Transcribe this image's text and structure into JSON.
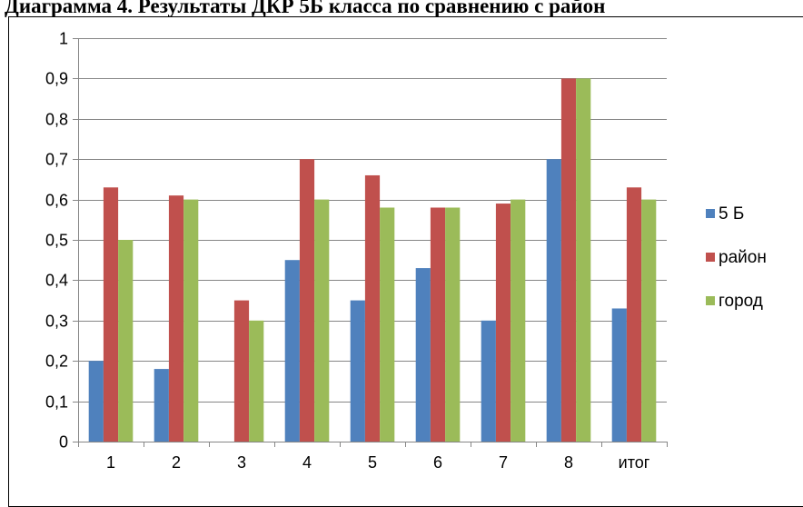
{
  "page": {
    "title": "Диаграмма 4. Результаты ДКР 5Б класса по сравнению с район"
  },
  "chart_data": {
    "type": "bar",
    "title": "Диаграмма 4. Результаты ДКР 5Б класса по сравнению с район",
    "categories": [
      "1",
      "2",
      "3",
      "4",
      "5",
      "6",
      "7",
      "8",
      "итог"
    ],
    "series": [
      {
        "name": "5 Б",
        "color": "#4F81BD",
        "values": [
          0.2,
          0.18,
          0,
          0.45,
          0.35,
          0.43,
          0.3,
          0.7,
          0.33
        ]
      },
      {
        "name": "район",
        "color": "#C0504D",
        "values": [
          0.63,
          0.61,
          0.35,
          0.7,
          0.66,
          0.58,
          0.59,
          0.9,
          0.63
        ]
      },
      {
        "name": "город",
        "color": "#9BBB59",
        "values": [
          0.5,
          0.6,
          0.3,
          0.6,
          0.58,
          0.58,
          0.6,
          0.9,
          0.6
        ]
      }
    ],
    "ylim": [
      0,
      1
    ],
    "yticks": [
      0,
      0.1,
      0.2,
      0.3,
      0.4,
      0.5,
      0.6,
      0.7,
      0.8,
      0.9,
      1
    ],
    "ytick_labels": [
      "0",
      "0,1",
      "0,2",
      "0,3",
      "0,4",
      "0,5",
      "0,6",
      "0,7",
      "0,8",
      "0,9",
      "1"
    ],
    "xlabel": "",
    "ylabel": "",
    "grid": true,
    "legend": "right"
  }
}
